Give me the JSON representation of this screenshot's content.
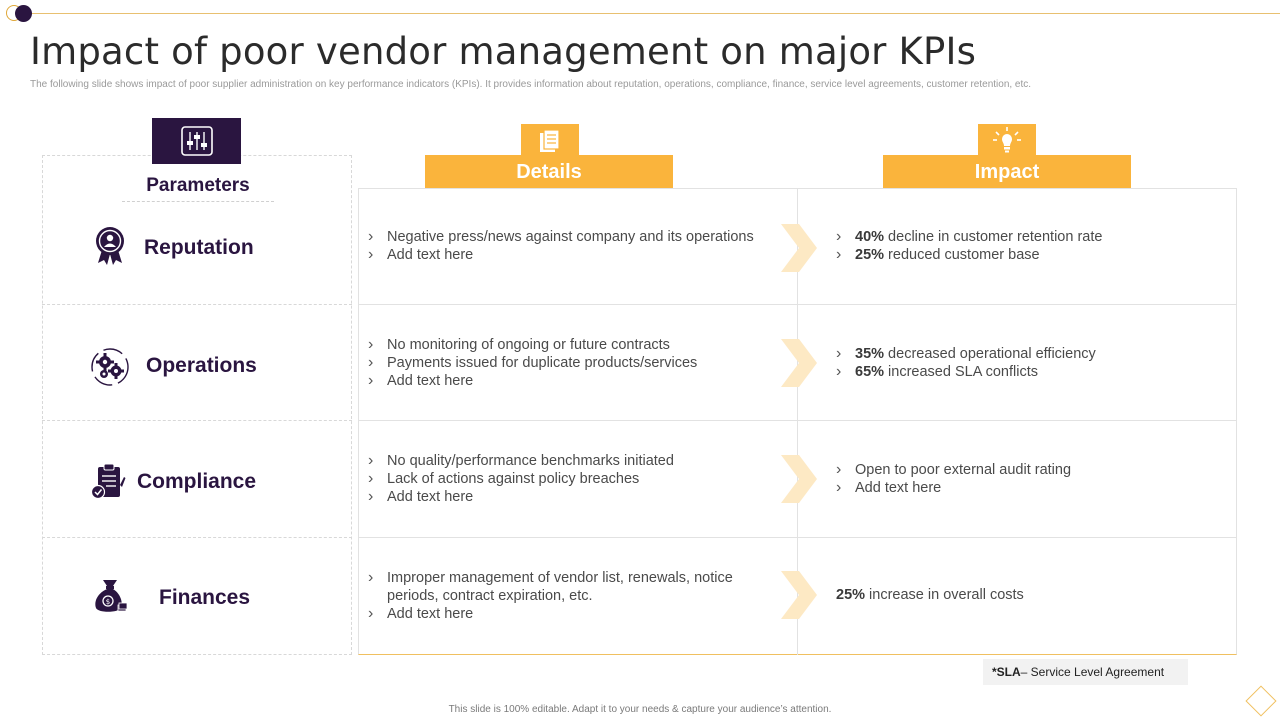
{
  "title": "Impact of poor vendor management on major KPIs",
  "subtitle": "The following slide shows impact of poor supplier administration on key performance indicators (KPIs). It provides information about reputation, operations, compliance, finance, service level agreements, customer retention, etc.",
  "parameters": {
    "header": "Parameters",
    "icon": "sliders-icon",
    "items": [
      {
        "label": "Reputation",
        "icon": "award-badge-icon"
      },
      {
        "label": "Operations",
        "icon": "gears-icon"
      },
      {
        "label": "Compliance",
        "icon": "clipboard-check-icon"
      },
      {
        "label": "Finances",
        "icon": "money-bag-icon"
      }
    ]
  },
  "columns": {
    "details": {
      "label": "Details",
      "icon": "document-icon"
    },
    "impact": {
      "label": "Impact",
      "icon": "lightbulb-icon"
    }
  },
  "rows": [
    {
      "details": [
        "Negative press/news against company and its operations",
        "Add text here"
      ],
      "impact": [
        {
          "bold": "40%",
          "text": " decline in customer retention rate"
        },
        {
          "bold": "25%",
          "text": " reduced customer base"
        }
      ]
    },
    {
      "details": [
        "No monitoring of ongoing or future contracts",
        "Payments issued for duplicate products/services",
        "Add text here"
      ],
      "impact": [
        {
          "bold": "35%",
          "text": " decreased operational efficiency"
        },
        {
          "bold": "65%",
          "text": " increased SLA conflicts"
        }
      ]
    },
    {
      "details": [
        "No quality/performance benchmarks initiated",
        "Lack of actions against policy breaches",
        "Add text here"
      ],
      "impact": [
        {
          "bold": "",
          "text": "Open to poor external audit rating"
        },
        {
          "bold": "",
          "text": "Add text here"
        }
      ]
    },
    {
      "details": [
        "Improper management of vendor list, renewals, notice periods, contract expiration,  etc.",
        "Add text here"
      ],
      "impact_plain": {
        "bold": "25%",
        "text": " increase in overall costs"
      }
    }
  ],
  "sla_note": {
    "bold": "*SLA",
    "text": "– Service Level Agreement"
  },
  "footer": "This slide is 100% editable.  Adapt it to your needs & capture your audience’s attention.",
  "colors": {
    "accent": "#fab43c",
    "dark": "#2a1540",
    "chevron": "#fde9c4"
  }
}
